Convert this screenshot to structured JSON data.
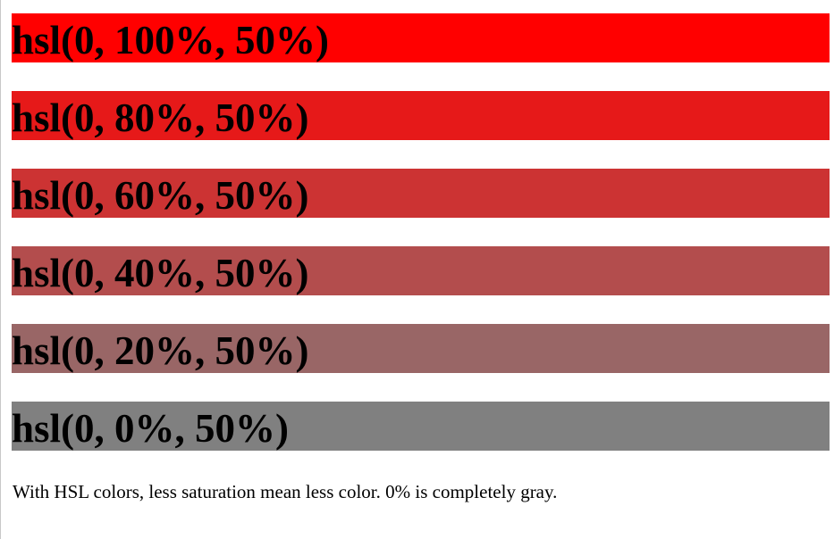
{
  "swatches": [
    {
      "label": "hsl(0, 100%, 50%)",
      "color": "#ff0000"
    },
    {
      "label": "hsl(0, 80%, 50%)",
      "color": "#e61919"
    },
    {
      "label": "hsl(0, 60%, 50%)",
      "color": "#cc3333"
    },
    {
      "label": "hsl(0, 40%, 50%)",
      "color": "#b34d4d"
    },
    {
      "label": "hsl(0, 20%, 50%)",
      "color": "#996666"
    },
    {
      "label": "hsl(0, 0%, 50%)",
      "color": "#808080"
    }
  ],
  "note": "With HSL colors, less saturation mean less color. 0% is completely gray."
}
